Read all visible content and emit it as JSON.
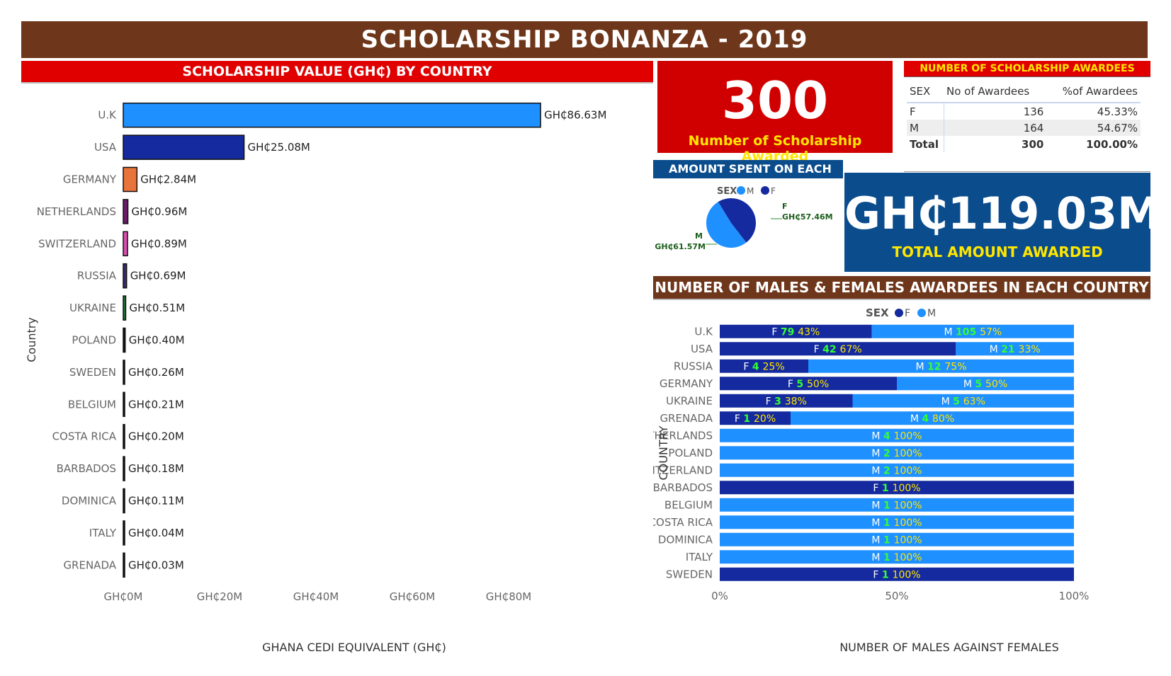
{
  "header": {
    "title": "SCHOLARSHIP BONANZA - 2019",
    "left_chart_title": "SCHOLARSHIP VALUE (GH₵) BY COUNTRY",
    "right_chart_title": "NUMBER OF MALES & FEMALES AWARDEES IN EACH COUNTRY",
    "pie_title": "AMOUNT SPENT ON EACH SEX"
  },
  "kpi": {
    "scholarships_value": "300",
    "scholarships_label": "Number of Scholarship Awarded",
    "amount_value": "GH₵119.03M",
    "amount_label": "TOTAL AMOUNT AWARDED"
  },
  "awardees_table": {
    "title": "NUMBER OF SCHOLARSHIP AWARDEES",
    "columns": [
      "SEX",
      "No of Awardees",
      "%of Awardees"
    ],
    "rows": [
      [
        "F",
        "136",
        "45.33%"
      ],
      [
        "M",
        "164",
        "54.67%"
      ],
      [
        "Total",
        "300",
        "100.00%"
      ]
    ]
  },
  "colors": {
    "banner": "#6e361a",
    "red": "#e00000",
    "blue_box": "#0a4c8c",
    "yellow": "#ffe600",
    "female": "#142a9e",
    "male": "#1e90ff",
    "count_green": "#33ff33"
  },
  "chart_data": [
    {
      "type": "bar",
      "orientation": "horizontal",
      "title": "SCHOLARSHIP VALUE (GH₵) BY COUNTRY",
      "xlabel": "GHANA CEDI EQUIVALENT (GH₵)",
      "ylabel": "Country",
      "x_ticks": [
        "GH₵0M",
        "GH₵20M",
        "GH₵40M",
        "GH₵60M",
        "GH₵80M"
      ],
      "xlim": [
        0,
        100
      ],
      "categories": [
        "U.K",
        "USA",
        "GERMANY",
        "NETHERLANDS",
        "SWITZERLAND",
        "RUSSIA",
        "UKRAINE",
        "POLAND",
        "SWEDEN",
        "BELGIUM",
        "COSTA RICA",
        "BARBADOS",
        "DOMINICA",
        "ITALY",
        "GRENADA"
      ],
      "values": [
        86.63,
        25.08,
        2.84,
        0.96,
        0.89,
        0.69,
        0.51,
        0.4,
        0.26,
        0.21,
        0.2,
        0.18,
        0.11,
        0.04,
        0.03
      ],
      "data_labels": [
        "GH₵86.63M",
        "GH₵25.08M",
        "GH₵2.84M",
        "GH₵0.96M",
        "GH₵0.89M",
        "GH₵0.69M",
        "GH₵0.51M",
        "GH₵0.40M",
        "GH₵0.26M",
        "GH₵0.21M",
        "GH₵0.20M",
        "GH₵0.18M",
        "GH₵0.11M",
        "GH₵0.04M",
        "GH₵0.03M"
      ],
      "bar_colors": [
        "#1e90ff",
        "#142a9e",
        "#e8743b",
        "#6a1b6a",
        "#d94fb0",
        "#3a2a6e",
        "#1f7a3a",
        "#111111",
        "#111111",
        "#111111",
        "#111111",
        "#111111",
        "#111111",
        "#111111",
        "#111111"
      ]
    },
    {
      "type": "pie",
      "title": "AMOUNT SPENT ON EACH SEX",
      "legend_title": "SEX",
      "legend": [
        "M",
        "F"
      ],
      "legend_placement": "top",
      "slices": [
        {
          "name": "F",
          "value": 57.46,
          "label": "GH₵57.46M",
          "color": "#142a9e"
        },
        {
          "name": "M",
          "value": 61.57,
          "label": "GH₵61.57M",
          "color": "#1e90ff"
        }
      ]
    },
    {
      "type": "bar",
      "orientation": "horizontal",
      "stacked": "percent",
      "title": "NUMBER OF MALES & FEMALES AWARDEES IN EACH COUNTRY",
      "xlabel": "NUMBER OF MALES AGAINST FEMALES",
      "ylabel": "COUNTRY",
      "legend_title": "SEX",
      "legend": [
        "F",
        "M"
      ],
      "legend_placement": "top",
      "x_ticks": [
        "0%",
        "50%",
        "100%"
      ],
      "categories": [
        "U.K",
        "USA",
        "RUSSIA",
        "GERMANY",
        "UKRAINE",
        "GRENADA",
        "NETHERLANDS",
        "POLAND",
        "SWITZERLAND",
        "BARBADOS",
        "BELGIUM",
        "COSTA RICA",
        "DOMINICA",
        "ITALY",
        "SWEDEN"
      ],
      "series": [
        {
          "name": "F",
          "values": [
            79,
            42,
            4,
            5,
            3,
            1,
            0,
            0,
            0,
            1,
            0,
            0,
            0,
            0,
            1
          ],
          "pct_labels": [
            "43%",
            "67%",
            "25%",
            "50%",
            "38%",
            "20%",
            "",
            "",
            "",
            "100%",
            "",
            "",
            "",
            "",
            "100%"
          ]
        },
        {
          "name": "M",
          "values": [
            105,
            21,
            12,
            5,
            5,
            4,
            4,
            2,
            2,
            0,
            1,
            1,
            1,
            1,
            0
          ],
          "pct_labels": [
            "57%",
            "33%",
            "75%",
            "50%",
            "63%",
            "80%",
            "100%",
            "100%",
            "100%",
            "",
            "100%",
            "100%",
            "100%",
            "100%",
            ""
          ]
        }
      ]
    }
  ]
}
